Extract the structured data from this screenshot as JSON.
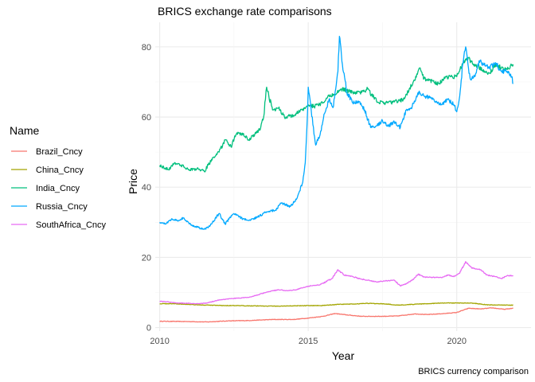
{
  "chart_data": {
    "type": "line",
    "title": "BRICS exchange rate comparisons",
    "xlabel": "Year",
    "ylabel": "Price",
    "caption": "BRICS currency comparison",
    "legend_title": "Name",
    "legend_position": "left",
    "grid": true,
    "xlim": [
      2009.85,
      2022.5
    ],
    "ylim": [
      -1,
      87
    ],
    "x_ticks": [
      2010,
      2015,
      2020
    ],
    "x_tick_labels": [
      "2010",
      "2015",
      "2020"
    ],
    "y_ticks": [
      0,
      20,
      40,
      60,
      80
    ],
    "y_tick_labels": [
      "0",
      "20",
      "40",
      "60",
      "80"
    ],
    "series": [
      {
        "name": "Brazil_Cncy",
        "color": "#F8766D",
        "points": [
          [
            2010.0,
            1.8
          ],
          [
            2011.0,
            1.7
          ],
          [
            2011.6,
            1.6
          ],
          [
            2012.3,
            1.9
          ],
          [
            2013.0,
            2.0
          ],
          [
            2013.8,
            2.3
          ],
          [
            2014.5,
            2.3
          ],
          [
            2015.0,
            2.7
          ],
          [
            2015.5,
            3.2
          ],
          [
            2015.9,
            4.0
          ],
          [
            2016.3,
            3.6
          ],
          [
            2016.8,
            3.2
          ],
          [
            2017.5,
            3.2
          ],
          [
            2018.0,
            3.3
          ],
          [
            2018.6,
            3.9
          ],
          [
            2019.0,
            3.7
          ],
          [
            2019.6,
            4.0
          ],
          [
            2020.0,
            4.3
          ],
          [
            2020.4,
            5.5
          ],
          [
            2020.8,
            5.3
          ],
          [
            2021.2,
            5.6
          ],
          [
            2021.6,
            5.2
          ],
          [
            2021.9,
            5.5
          ]
        ]
      },
      {
        "name": "China_Cncy",
        "color": "#A3A500",
        "points": [
          [
            2010.0,
            6.8
          ],
          [
            2010.5,
            6.8
          ],
          [
            2011.0,
            6.6
          ],
          [
            2011.5,
            6.4
          ],
          [
            2012.0,
            6.3
          ],
          [
            2013.0,
            6.2
          ],
          [
            2014.0,
            6.1
          ],
          [
            2014.5,
            6.2
          ],
          [
            2015.5,
            6.3
          ],
          [
            2016.0,
            6.6
          ],
          [
            2016.5,
            6.7
          ],
          [
            2017.0,
            6.9
          ],
          [
            2017.5,
            6.8
          ],
          [
            2018.0,
            6.4
          ],
          [
            2018.5,
            6.6
          ],
          [
            2019.0,
            6.8
          ],
          [
            2019.5,
            7.0
          ],
          [
            2020.0,
            7.0
          ],
          [
            2020.5,
            7.0
          ],
          [
            2021.0,
            6.5
          ],
          [
            2021.5,
            6.4
          ],
          [
            2021.9,
            6.4
          ]
        ]
      },
      {
        "name": "India_Cncy",
        "color": "#00BF7D",
        "points": [
          [
            2010.0,
            46.2
          ],
          [
            2010.3,
            45.0
          ],
          [
            2010.5,
            47.0
          ],
          [
            2010.7,
            46.3
          ],
          [
            2011.0,
            45.0
          ],
          [
            2011.3,
            45.2
          ],
          [
            2011.5,
            44.5
          ],
          [
            2011.8,
            48.5
          ],
          [
            2012.0,
            50.0
          ],
          [
            2012.2,
            53.5
          ],
          [
            2012.4,
            51.5
          ],
          [
            2012.6,
            55.5
          ],
          [
            2012.8,
            55.0
          ],
          [
            2013.0,
            53.5
          ],
          [
            2013.2,
            55.0
          ],
          [
            2013.4,
            57.0
          ],
          [
            2013.5,
            60.0
          ],
          [
            2013.6,
            68.5
          ],
          [
            2013.8,
            62.0
          ],
          [
            2014.0,
            62.5
          ],
          [
            2014.2,
            60.0
          ],
          [
            2014.5,
            60.5
          ],
          [
            2014.8,
            62.0
          ],
          [
            2015.0,
            63.5
          ],
          [
            2015.2,
            63.0
          ],
          [
            2015.5,
            64.0
          ],
          [
            2015.7,
            66.0
          ],
          [
            2015.9,
            66.5
          ],
          [
            2016.1,
            68.0
          ],
          [
            2016.5,
            67.0
          ],
          [
            2016.8,
            67.0
          ],
          [
            2017.0,
            68.0
          ],
          [
            2017.3,
            64.5
          ],
          [
            2017.6,
            64.0
          ],
          [
            2017.9,
            64.3
          ],
          [
            2018.2,
            65.0
          ],
          [
            2018.4,
            68.0
          ],
          [
            2018.6,
            70.5
          ],
          [
            2018.75,
            74.0
          ],
          [
            2018.9,
            71.0
          ],
          [
            2019.1,
            70.5
          ],
          [
            2019.4,
            69.5
          ],
          [
            2019.6,
            71.0
          ],
          [
            2019.8,
            71.5
          ],
          [
            2020.0,
            71.5
          ],
          [
            2020.2,
            75.0
          ],
          [
            2020.35,
            77.0
          ],
          [
            2020.6,
            75.0
          ],
          [
            2020.9,
            73.5
          ],
          [
            2021.1,
            72.5
          ],
          [
            2021.3,
            75.0
          ],
          [
            2021.5,
            74.0
          ],
          [
            2021.7,
            73.5
          ],
          [
            2021.9,
            75.0
          ]
        ]
      },
      {
        "name": "Russia_Cncy",
        "color": "#00A9FF",
        "points": [
          [
            2010.0,
            30.0
          ],
          [
            2010.2,
            29.5
          ],
          [
            2010.4,
            31.0
          ],
          [
            2010.6,
            30.5
          ],
          [
            2010.8,
            31.2
          ],
          [
            2011.0,
            29.5
          ],
          [
            2011.3,
            28.5
          ],
          [
            2011.5,
            28.0
          ],
          [
            2011.7,
            29.0
          ],
          [
            2012.0,
            32.5
          ],
          [
            2012.2,
            29.5
          ],
          [
            2012.5,
            32.5
          ],
          [
            2012.8,
            31.0
          ],
          [
            2013.0,
            30.5
          ],
          [
            2013.3,
            31.5
          ],
          [
            2013.6,
            33.0
          ],
          [
            2013.9,
            33.5
          ],
          [
            2014.1,
            35.5
          ],
          [
            2014.4,
            34.5
          ],
          [
            2014.6,
            36.5
          ],
          [
            2014.8,
            41.0
          ],
          [
            2014.9,
            47.0
          ],
          [
            2014.97,
            60.0
          ],
          [
            2015.0,
            68.5
          ],
          [
            2015.1,
            62.0
          ],
          [
            2015.25,
            52.0
          ],
          [
            2015.4,
            55.0
          ],
          [
            2015.55,
            61.0
          ],
          [
            2015.7,
            65.0
          ],
          [
            2015.85,
            63.0
          ],
          [
            2016.0,
            73.0
          ],
          [
            2016.05,
            83.0
          ],
          [
            2016.15,
            75.0
          ],
          [
            2016.3,
            67.0
          ],
          [
            2016.5,
            64.0
          ],
          [
            2016.7,
            64.5
          ],
          [
            2016.9,
            62.0
          ],
          [
            2017.1,
            57.0
          ],
          [
            2017.3,
            57.5
          ],
          [
            2017.5,
            59.0
          ],
          [
            2017.7,
            57.5
          ],
          [
            2017.9,
            58.5
          ],
          [
            2018.1,
            57.0
          ],
          [
            2018.3,
            62.0
          ],
          [
            2018.5,
            63.0
          ],
          [
            2018.7,
            67.0
          ],
          [
            2018.9,
            66.0
          ],
          [
            2019.1,
            65.5
          ],
          [
            2019.3,
            64.5
          ],
          [
            2019.5,
            63.5
          ],
          [
            2019.7,
            65.0
          ],
          [
            2019.9,
            63.5
          ],
          [
            2020.0,
            61.5
          ],
          [
            2020.1,
            66.0
          ],
          [
            2020.2,
            75.0
          ],
          [
            2020.3,
            80.0
          ],
          [
            2020.45,
            71.0
          ],
          [
            2020.6,
            71.5
          ],
          [
            2020.75,
            76.0
          ],
          [
            2020.9,
            75.0
          ],
          [
            2021.1,
            74.0
          ],
          [
            2021.3,
            75.5
          ],
          [
            2021.5,
            73.0
          ],
          [
            2021.7,
            73.0
          ],
          [
            2021.85,
            71.5
          ],
          [
            2021.9,
            69.5
          ]
        ]
      },
      {
        "name": "SouthAfrica_Cncy",
        "color": "#E76BF3",
        "points": [
          [
            2010.0,
            7.5
          ],
          [
            2010.3,
            7.3
          ],
          [
            2010.6,
            7.0
          ],
          [
            2011.0,
            6.9
          ],
          [
            2011.3,
            6.8
          ],
          [
            2011.6,
            7.0
          ],
          [
            2012.0,
            7.9
          ],
          [
            2012.5,
            8.3
          ],
          [
            2013.0,
            8.6
          ],
          [
            2013.3,
            9.3
          ],
          [
            2013.6,
            10.1
          ],
          [
            2014.0,
            10.8
          ],
          [
            2014.3,
            10.5
          ],
          [
            2014.6,
            10.8
          ],
          [
            2015.0,
            11.8
          ],
          [
            2015.4,
            12.2
          ],
          [
            2015.8,
            14.0
          ],
          [
            2016.0,
            16.5
          ],
          [
            2016.2,
            15.0
          ],
          [
            2016.5,
            14.5
          ],
          [
            2016.8,
            13.8
          ],
          [
            2017.0,
            13.5
          ],
          [
            2017.3,
            13.0
          ],
          [
            2017.6,
            13.3
          ],
          [
            2017.9,
            13.5
          ],
          [
            2018.1,
            11.9
          ],
          [
            2018.3,
            12.5
          ],
          [
            2018.5,
            13.5
          ],
          [
            2018.7,
            15.2
          ],
          [
            2018.9,
            14.4
          ],
          [
            2019.2,
            14.3
          ],
          [
            2019.5,
            14.2
          ],
          [
            2019.7,
            15.0
          ],
          [
            2019.9,
            14.5
          ],
          [
            2020.1,
            15.5
          ],
          [
            2020.3,
            18.8
          ],
          [
            2020.5,
            17.0
          ],
          [
            2020.8,
            16.5
          ],
          [
            2021.0,
            15.0
          ],
          [
            2021.3,
            14.5
          ],
          [
            2021.5,
            14.0
          ],
          [
            2021.7,
            14.8
          ],
          [
            2021.9,
            14.8
          ]
        ]
      }
    ]
  }
}
